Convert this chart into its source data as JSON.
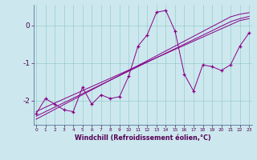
{
  "xlabel": "Windchill (Refroidissement éolien,°C)",
  "background_color": "#cce8ee",
  "line_color": "#880088",
  "grid_color": "#99cccc",
  "x_data": [
    0,
    1,
    2,
    3,
    4,
    5,
    6,
    7,
    8,
    9,
    10,
    11,
    12,
    13,
    14,
    15,
    16,
    17,
    18,
    19,
    20,
    21,
    22,
    23
  ],
  "y_scatter": [
    -2.35,
    -1.95,
    -2.1,
    -2.25,
    -2.3,
    -1.65,
    -2.1,
    -1.85,
    -1.95,
    -1.9,
    -1.35,
    -0.55,
    -0.25,
    0.35,
    0.4,
    -0.15,
    -1.3,
    -1.75,
    -1.05,
    -1.1,
    -1.2,
    -1.05,
    -0.55,
    -0.2
  ],
  "y_line1": [
    -2.3,
    -2.18,
    -2.07,
    -1.96,
    -1.85,
    -1.74,
    -1.63,
    -1.52,
    -1.41,
    -1.3,
    -1.19,
    -1.08,
    -0.97,
    -0.86,
    -0.75,
    -0.64,
    -0.53,
    -0.42,
    -0.31,
    -0.2,
    -0.09,
    0.02,
    0.13,
    0.18
  ],
  "y_line2": [
    -2.42,
    -2.3,
    -2.18,
    -2.06,
    -1.94,
    -1.82,
    -1.7,
    -1.58,
    -1.46,
    -1.34,
    -1.22,
    -1.1,
    -0.98,
    -0.86,
    -0.74,
    -0.62,
    -0.5,
    -0.38,
    -0.26,
    -0.14,
    -0.02,
    0.1,
    0.18,
    0.24
  ],
  "y_line3": [
    -2.5,
    -2.37,
    -2.24,
    -2.11,
    -1.98,
    -1.85,
    -1.72,
    -1.59,
    -1.46,
    -1.33,
    -1.2,
    -1.07,
    -0.94,
    -0.81,
    -0.68,
    -0.55,
    -0.42,
    -0.29,
    -0.16,
    -0.03,
    0.1,
    0.23,
    0.3,
    0.34
  ],
  "ylim": [
    -2.65,
    0.55
  ],
  "yticks": [
    0,
    -1,
    -2
  ],
  "xlim": [
    -0.3,
    23.3
  ],
  "xticks": [
    0,
    1,
    2,
    3,
    4,
    5,
    6,
    7,
    8,
    9,
    10,
    11,
    12,
    13,
    14,
    15,
    16,
    17,
    18,
    19,
    20,
    21,
    22,
    23
  ]
}
